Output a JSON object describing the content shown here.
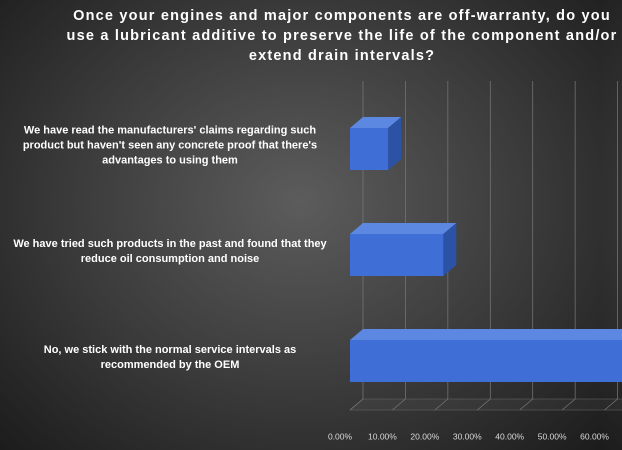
{
  "chart_data": {
    "type": "bar3d_horizontal",
    "title": "Once your engines and major components are off-warranty, do you use a lubricant additive to preserve the life of the component and/or extend drain intervals?",
    "categories": [
      "We have read the manufacturers' claims regarding such product but haven't seen any concrete proof that there's advantages to using them",
      "We have tried such products in the past and found that they reduce oil consumption and noise",
      "No, we stick with the normal service intervals as recommended by the OEM"
    ],
    "values": [
      9,
      22,
      66
    ],
    "color": "#3f6fd6",
    "xlim": [
      0,
      70
    ],
    "xticks": [
      {
        "value": 0,
        "label": "0.00%"
      },
      {
        "value": 10,
        "label": "10.00%"
      },
      {
        "value": 20,
        "label": "20.00%"
      },
      {
        "value": 30,
        "label": "30.00%"
      },
      {
        "value": 40,
        "label": "40.00%"
      },
      {
        "value": 50,
        "label": "50.00%"
      },
      {
        "value": 60,
        "label": "60.00%"
      }
    ],
    "grid": true
  }
}
